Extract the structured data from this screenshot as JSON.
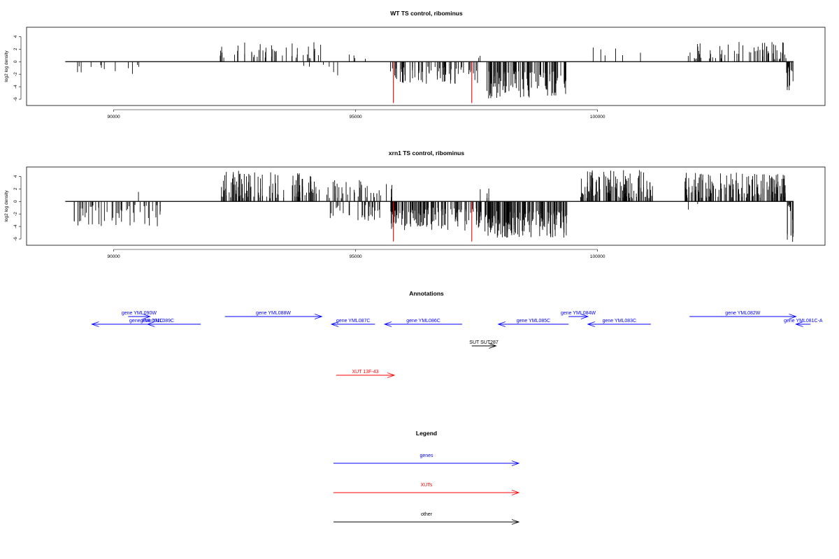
{
  "colors": {
    "gene": "#0000ff",
    "xut": "#ff0000",
    "other": "#000000",
    "frame": "#000000"
  },
  "chart_data": [
    {
      "type": "bar",
      "title": "WT TS control, ribominus",
      "ylabel": "log2 log density",
      "xlim": [
        88200,
        104700
      ],
      "ylim": [
        -7,
        5.5
      ],
      "x_ticks": [
        90000,
        95000,
        100000
      ],
      "y_ticks": [
        4,
        2,
        0,
        -2,
        -4,
        -6
      ],
      "clusters": [
        {
          "from": 89100,
          "to": 90900,
          "sign": -1,
          "min": 0.5,
          "max": 2.3,
          "count": 12,
          "seed": 11
        },
        {
          "from": 92200,
          "to": 94300,
          "sign": 1,
          "min": 0.5,
          "max": 3.2,
          "count": 45,
          "seed": 12
        },
        {
          "from": 93900,
          "to": 94500,
          "sign": -1,
          "min": 0.4,
          "max": 1.5,
          "count": 3,
          "seed": 13
        },
        {
          "from": 94700,
          "to": 95400,
          "sign": 1,
          "min": 0.4,
          "max": 2.0,
          "count": 4,
          "seed": 14
        },
        {
          "from": 94400,
          "to": 95000,
          "sign": -1,
          "min": 0.5,
          "max": 2.6,
          "count": 3,
          "seed": 15
        },
        {
          "from": 95720,
          "to": 97600,
          "sign": -1,
          "min": 0.8,
          "max": 3.6,
          "count": 70,
          "seed": 16
        },
        {
          "from": 97700,
          "to": 99350,
          "sign": -1,
          "min": 1.5,
          "max": 5.9,
          "count": 110,
          "seed": 17
        },
        {
          "from": 97500,
          "to": 97800,
          "sign": 1,
          "min": 0.5,
          "max": 1.0,
          "count": 2,
          "seed": 18
        },
        {
          "from": 99850,
          "to": 101100,
          "sign": 1,
          "min": 1.0,
          "max": 2.6,
          "count": 6,
          "seed": 19
        },
        {
          "from": 101800,
          "to": 103900,
          "sign": 1,
          "min": 0.4,
          "max": 3.2,
          "count": 60,
          "seed": 20
        },
        {
          "from": 103900,
          "to": 104050,
          "sign": -1,
          "min": 0.5,
          "max": 5.3,
          "count": 12,
          "seed": 21
        }
      ],
      "red_bars": [
        {
          "x": 95780,
          "y": -6.6
        },
        {
          "x": 97400,
          "y": -6.6
        }
      ]
    },
    {
      "type": "bar",
      "title": "xrn1 TS control, ribominus",
      "ylabel": "log2 log density",
      "xlim": [
        88200,
        104700
      ],
      "ylim": [
        -7,
        5.5
      ],
      "x_ticks": [
        90000,
        95000,
        100000
      ],
      "y_ticks": [
        4,
        2,
        0,
        -2,
        -4,
        -6
      ],
      "clusters": [
        {
          "from": 89100,
          "to": 91000,
          "sign": -1,
          "min": 0.5,
          "max": 4.0,
          "count": 50,
          "seed": 31
        },
        {
          "from": 90500,
          "to": 90550,
          "sign": 1,
          "min": 1.5,
          "max": 1.7,
          "count": 1,
          "seed": 32
        },
        {
          "from": 92200,
          "to": 94300,
          "sign": 1,
          "min": 0.5,
          "max": 4.9,
          "count": 110,
          "seed": 33
        },
        {
          "from": 94400,
          "to": 95750,
          "sign": 1,
          "min": 0.5,
          "max": 3.4,
          "count": 40,
          "seed": 34
        },
        {
          "from": 94400,
          "to": 95500,
          "sign": -1,
          "min": 0.5,
          "max": 3.2,
          "count": 30,
          "seed": 35
        },
        {
          "from": 95720,
          "to": 97600,
          "sign": -1,
          "min": 1.0,
          "max": 4.7,
          "count": 120,
          "seed": 36
        },
        {
          "from": 97650,
          "to": 99400,
          "sign": -1,
          "min": 1.5,
          "max": 5.8,
          "count": 170,
          "seed": 37
        },
        {
          "from": 97500,
          "to": 97800,
          "sign": 1,
          "min": 0.5,
          "max": 2.7,
          "count": 5,
          "seed": 38
        },
        {
          "from": 99650,
          "to": 101150,
          "sign": 1,
          "min": 0.5,
          "max": 5.0,
          "count": 110,
          "seed": 39
        },
        {
          "from": 101800,
          "to": 103900,
          "sign": 1,
          "min": 0.5,
          "max": 4.6,
          "count": 140,
          "seed": 40
        },
        {
          "from": 101800,
          "to": 102100,
          "sign": -1,
          "min": 0.3,
          "max": 1.3,
          "count": 2,
          "seed": 41
        },
        {
          "from": 103900,
          "to": 104050,
          "sign": -1,
          "min": 0.5,
          "max": 6.5,
          "count": 14,
          "seed": 42
        }
      ],
      "red_bars": [
        {
          "x": 95780,
          "y": -6.4
        },
        {
          "x": 97400,
          "y": -6.4
        }
      ]
    }
  ],
  "annotations": {
    "title": "Annotations",
    "items": [
      {
        "label": "gene YML091C",
        "start": 91800,
        "end": 89550,
        "type": "gene",
        "row": 0
      },
      {
        "label": "gene YML090W",
        "start": 90300,
        "end": 90750,
        "type": "gene",
        "row": 1
      },
      {
        "label": "gene YML089C",
        "start": 91100,
        "end": 90700,
        "type": "gene",
        "row": 0
      },
      {
        "label": "gene YML088W",
        "start": 92300,
        "end": 94300,
        "type": "gene",
        "row": 1
      },
      {
        "label": "gene YML087C",
        "start": 95400,
        "end": 94500,
        "type": "gene",
        "row": 0
      },
      {
        "label": "gene YML086C",
        "start": 97200,
        "end": 95600,
        "type": "gene",
        "row": 0
      },
      {
        "label": "gene YML085C",
        "start": 99400,
        "end": 97950,
        "type": "gene",
        "row": 0
      },
      {
        "label": "gene YML084W",
        "start": 99400,
        "end": 99800,
        "type": "gene",
        "row": 1
      },
      {
        "label": "gene YML083C",
        "start": 101100,
        "end": 99800,
        "type": "gene",
        "row": 0
      },
      {
        "label": "gene YML082W",
        "start": 101900,
        "end": 104100,
        "type": "gene",
        "row": 1
      },
      {
        "label": "gene YML081C-A",
        "start": 104400,
        "end": 104100,
        "type": "gene",
        "row": 0
      },
      {
        "label": "SUT SUT287",
        "start": 97400,
        "end": 97900,
        "type": "other",
        "row": 2
      },
      {
        "label": "XUT 13F-43",
        "start": 94600,
        "end": 95800,
        "type": "xut",
        "row": 3
      }
    ]
  },
  "legend": {
    "title": "Legend",
    "items": [
      {
        "label": "genes",
        "type": "gene"
      },
      {
        "label": "XUTs",
        "type": "xut"
      },
      {
        "label": "other",
        "type": "other"
      }
    ]
  }
}
